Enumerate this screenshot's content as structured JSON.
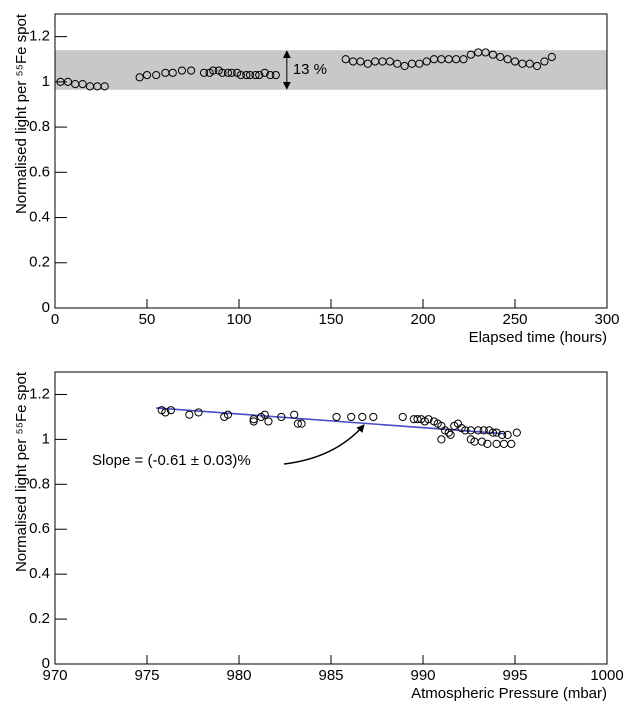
{
  "chart_data": [
    {
      "type": "scatter",
      "xlabel": "Elapsed time (hours)",
      "ylabel": "Normalised light per ⁵⁵Fe spot",
      "x": [
        3,
        7,
        11,
        15,
        19,
        23,
        27,
        46,
        50,
        55,
        60,
        64,
        69,
        74,
        81,
        84,
        86,
        89,
        91,
        94,
        96,
        99,
        101,
        104,
        106,
        109,
        111,
        114,
        117,
        120,
        158,
        162,
        166,
        170,
        174,
        178,
        182,
        186,
        190,
        194,
        198,
        202,
        206,
        210,
        214,
        218,
        222,
        226,
        230,
        234,
        238,
        242,
        246,
        250,
        254,
        258,
        262,
        266,
        270
      ],
      "values": [
        1.0,
        1.0,
        0.99,
        0.99,
        0.98,
        0.98,
        0.98,
        1.02,
        1.03,
        1.03,
        1.04,
        1.04,
        1.05,
        1.05,
        1.04,
        1.04,
        1.05,
        1.05,
        1.04,
        1.04,
        1.04,
        1.04,
        1.03,
        1.03,
        1.03,
        1.03,
        1.03,
        1.04,
        1.03,
        1.03,
        1.1,
        1.09,
        1.09,
        1.08,
        1.09,
        1.09,
        1.09,
        1.08,
        1.07,
        1.08,
        1.08,
        1.09,
        1.1,
        1.1,
        1.1,
        1.1,
        1.1,
        1.12,
        1.13,
        1.13,
        1.12,
        1.11,
        1.1,
        1.09,
        1.08,
        1.08,
        1.07,
        1.09,
        1.11
      ],
      "color": "#000000",
      "band": [
        0.965,
        1.14
      ],
      "band_color": "#c8c8c8",
      "annotation": "13 %",
      "xlim": [
        0,
        300
      ],
      "xticks": [
        0,
        50,
        100,
        150,
        200,
        250,
        300
      ],
      "ylim": [
        0,
        1.3
      ],
      "yticks": [
        0,
        0.2,
        0.4,
        0.6,
        0.8,
        1,
        1.2
      ]
    },
    {
      "type": "scatter",
      "xlabel": "Atmospheric Pressure (mbar)",
      "ylabel": "Normalised light per ⁵⁵Fe spot",
      "x": [
        975.8,
        976.0,
        976.3,
        977.3,
        977.8,
        979.2,
        979.4,
        980.8,
        980.8,
        981.2,
        981.4,
        981.6,
        982.3,
        983.0,
        983.2,
        983.4,
        985.3,
        986.1,
        986.7,
        987.3,
        988.9,
        989.5,
        989.7,
        989.9,
        990.1,
        990.3,
        990.6,
        990.8,
        991.0,
        991.0,
        991.2,
        991.4,
        991.5,
        991.7,
        991.9,
        992.1,
        992.3,
        992.6,
        992.6,
        992.8,
        993.0,
        993.2,
        993.3,
        993.5,
        993.6,
        993.8,
        994.0,
        994.0,
        994.3,
        994.4,
        994.6,
        994.8,
        995.1
      ],
      "values": [
        1.13,
        1.12,
        1.13,
        1.11,
        1.12,
        1.1,
        1.11,
        1.09,
        1.08,
        1.1,
        1.11,
        1.08,
        1.1,
        1.11,
        1.07,
        1.07,
        1.1,
        1.1,
        1.1,
        1.1,
        1.1,
        1.09,
        1.09,
        1.09,
        1.08,
        1.09,
        1.08,
        1.07,
        1.06,
        1.0,
        1.04,
        1.03,
        1.02,
        1.06,
        1.07,
        1.05,
        1.04,
        1.04,
        1.0,
        0.99,
        1.04,
        0.99,
        1.04,
        0.98,
        1.04,
        1.03,
        1.03,
        0.98,
        1.02,
        0.98,
        1.02,
        0.98,
        1.03
      ],
      "color": "#000000",
      "fit": {
        "x": [
          975.5,
          994.5
        ],
        "values": [
          1.14,
          1.025
        ],
        "color": "#4b4bc8"
      },
      "annotation": "Slope = (-0.61 ± 0.03)%",
      "xlim": [
        970,
        1000
      ],
      "xticks": [
        970,
        975,
        980,
        985,
        990,
        995,
        1000
      ],
      "ylim": [
        0,
        1.3
      ],
      "yticks": [
        0,
        0.2,
        0.4,
        0.6,
        0.8,
        1,
        1.2
      ]
    }
  ]
}
